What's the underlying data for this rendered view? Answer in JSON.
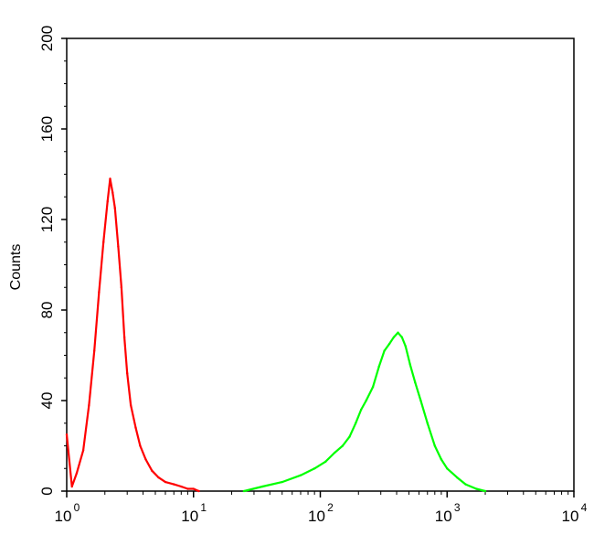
{
  "chart_data": {
    "type": "line",
    "title": "",
    "xlabel": "",
    "ylabel": "Counts",
    "x_scale": "log",
    "xlim": [
      1,
      10000
    ],
    "ylim": [
      0,
      200
    ],
    "grid": false,
    "legend": "none",
    "x_ticks": [
      {
        "base": "10",
        "exp": "0"
      },
      {
        "base": "10",
        "exp": "1"
      },
      {
        "base": "10",
        "exp": "2"
      },
      {
        "base": "10",
        "exp": "3"
      },
      {
        "base": "10",
        "exp": "4"
      }
    ],
    "y_ticks": [
      "0",
      "40",
      "80",
      "120",
      "160",
      "200"
    ],
    "series": [
      {
        "color": "#ff0000",
        "x": [
          1.0,
          1.1,
          1.2,
          1.35,
          1.5,
          1.65,
          1.8,
          1.95,
          2.1,
          2.2,
          2.3,
          2.4,
          2.55,
          2.7,
          2.85,
          3.0,
          3.2,
          3.5,
          3.8,
          4.2,
          4.7,
          5.3,
          6.0,
          7.0,
          8.0,
          9.0,
          10.0,
          11.0
        ],
        "y": [
          25,
          2,
          8,
          18,
          38,
          62,
          88,
          110,
          128,
          138,
          132,
          125,
          108,
          90,
          68,
          52,
          38,
          28,
          20,
          14,
          9,
          6,
          4,
          3,
          2,
          1,
          1,
          0
        ]
      },
      {
        "color": "#00ff00",
        "x": [
          25,
          35,
          50,
          70,
          90,
          110,
          130,
          150,
          170,
          190,
          210,
          230,
          260,
          290,
          320,
          350,
          380,
          410,
          440,
          470,
          510,
          560,
          620,
          700,
          800,
          900,
          1000,
          1200,
          1400,
          1700,
          2000
        ],
        "y": [
          0,
          2,
          4,
          7,
          10,
          13,
          17,
          20,
          24,
          30,
          36,
          40,
          46,
          55,
          62,
          65,
          68,
          70,
          68,
          64,
          56,
          48,
          40,
          30,
          20,
          14,
          10,
          6,
          3,
          1,
          0
        ]
      }
    ]
  }
}
